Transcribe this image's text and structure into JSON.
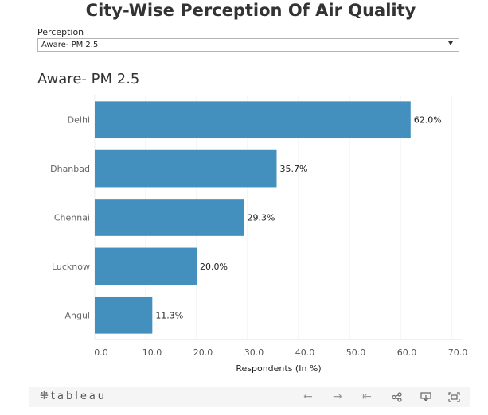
{
  "title": "City-Wise Perception Of Air Quality",
  "filter": {
    "label": "Perception",
    "value": "Aware- PM 2.5"
  },
  "sheet_title": "Aware- PM 2.5",
  "toolbar": {
    "logo_text": "tableau",
    "icons": [
      "undo-icon",
      "redo-icon",
      "revert-icon",
      "share-icon",
      "download-icon",
      "fullscreen-icon"
    ]
  },
  "colors": {
    "bar": "#4390bf",
    "grid": "#ececec",
    "text": "#333333",
    "toolbar_bg": "#f5f5f5"
  },
  "chart_data": {
    "type": "bar",
    "orientation": "horizontal",
    "categories": [
      "Delhi",
      "Dhanbad",
      "Chennai",
      "Lucknow",
      "Angul"
    ],
    "values": [
      62.0,
      35.7,
      29.3,
      20.0,
      11.3
    ],
    "value_labels": [
      "62.0%",
      "35.7%",
      "29.3%",
      "20.0%",
      "11.3%"
    ],
    "xlabel": "Respondents (In %)",
    "ylabel": "",
    "xlim": [
      0,
      70
    ],
    "xticks": [
      "0.0",
      "10.0",
      "20.0",
      "30.0",
      "40.0",
      "50.0",
      "60.0",
      "70.0"
    ],
    "grid": true
  }
}
